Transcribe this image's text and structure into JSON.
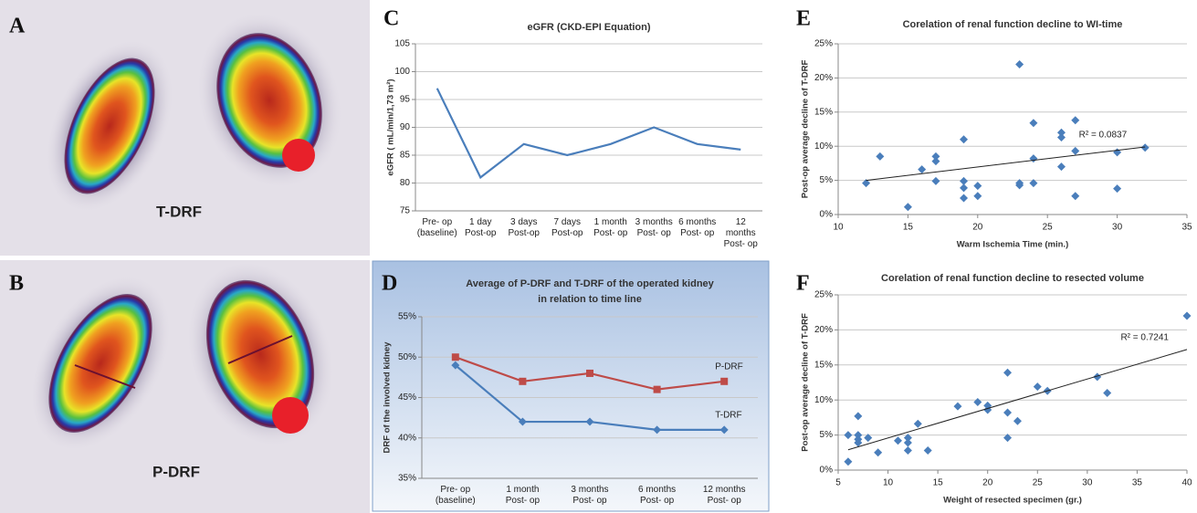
{
  "images": [
    {
      "letter": "A",
      "label": "T-DRF"
    },
    {
      "letter": "B",
      "label": "P-DRF"
    }
  ],
  "chart_data": [
    {
      "type": "line",
      "panel": "C",
      "title": [
        "eGFR (CKD-EPI Equation)"
      ],
      "ylabel": "eGFR ( mL/min/1,73 m²)",
      "categories": [
        [
          "Pre- op",
          "(baseline)"
        ],
        [
          "1 day",
          "Post-op"
        ],
        [
          "3 days",
          "Post-op"
        ],
        [
          "7 days",
          "Post-op"
        ],
        [
          "1 month",
          "Post- op"
        ],
        [
          "3 months",
          "Post- op"
        ],
        [
          "6 months",
          "Post- op"
        ],
        [
          "12",
          "months",
          "Post- op"
        ]
      ],
      "series": [
        {
          "color": "#4a7ebb",
          "values": [
            97,
            81,
            87,
            85,
            87,
            90,
            87,
            86
          ]
        }
      ],
      "ylim": [
        75,
        105
      ],
      "yticks": [
        75,
        80,
        85,
        90,
        95,
        100,
        105
      ],
      "grid": true
    },
    {
      "type": "line",
      "panel": "D",
      "title": [
        "Average of P-DRF and T-DRF of the operated kidney",
        "in relation to time line"
      ],
      "ylabel": "DRF of the involved kidney",
      "categories": [
        [
          "Pre- op",
          "(baseline)"
        ],
        [
          "1 month",
          "Post- op"
        ],
        [
          "3 months",
          "Post- op"
        ],
        [
          "6 months",
          "Post- op"
        ],
        [
          "12 months",
          "Post- op"
        ]
      ],
      "series": [
        {
          "name": "P-DRF",
          "color": "#be4b48",
          "marker": "square",
          "values": [
            50,
            47,
            48,
            46,
            47
          ]
        },
        {
          "name": "T-DRF",
          "color": "#4a7ebb",
          "marker": "diamond",
          "values": [
            49,
            42,
            42,
            41,
            41
          ]
        }
      ],
      "ylim": [
        35,
        55
      ],
      "yticks": [
        {
          "value": 35,
          "label": "35%"
        },
        {
          "value": 40,
          "label": "40%"
        },
        {
          "value": 45,
          "label": "45%"
        },
        {
          "value": 50,
          "label": "50%"
        },
        {
          "value": 55,
          "label": "55%"
        }
      ],
      "grid": true
    },
    {
      "type": "scatter",
      "panel": "E",
      "title": [
        "Corelation of renal function decline to WI-time"
      ],
      "xlabel": "Warm Ischemia Time (min.)",
      "ylabel": "Post-op average decline of T-DRF",
      "color": "#4a7ebb",
      "x": [
        12,
        13,
        15,
        16,
        17,
        17,
        17,
        19,
        19,
        19,
        19,
        20,
        20,
        23,
        23,
        23,
        24,
        24,
        24,
        26,
        26,
        26,
        27,
        27,
        27,
        30,
        30,
        32
      ],
      "values": [
        4.6,
        8.5,
        1.1,
        6.6,
        7.8,
        8.5,
        4.9,
        11,
        4.9,
        3.9,
        2.4,
        4.2,
        2.7,
        22,
        4.6,
        4.3,
        13.4,
        8.2,
        4.6,
        12,
        11.3,
        7,
        13.8,
        9.3,
        2.7,
        9.1,
        3.8,
        9.8
      ],
      "trendline": {
        "x": [
          12,
          32
        ],
        "y": [
          5.0,
          9.9
        ]
      },
      "annotation": "R² = 0.0837",
      "xlim": [
        10,
        35
      ],
      "xticks": [
        10,
        15,
        20,
        25,
        30,
        35
      ],
      "ylim": [
        0,
        25
      ],
      "yticks": [
        {
          "value": 0,
          "label": "0%"
        },
        {
          "value": 5,
          "label": "5%"
        },
        {
          "value": 10,
          "label": "10%"
        },
        {
          "value": 15,
          "label": "15%"
        },
        {
          "value": 20,
          "label": "20%"
        },
        {
          "value": 25,
          "label": "25%"
        }
      ],
      "grid": true
    },
    {
      "type": "scatter",
      "panel": "F",
      "title": [
        "Corelation of renal function decline to resected volume"
      ],
      "xlabel": "Weight of resected specimen (gr.)",
      "ylabel": "Post-op average decline of T-DRF",
      "color": "#4a7ebb",
      "x": [
        6,
        6,
        7,
        7,
        7,
        7,
        8,
        9,
        11,
        12,
        12,
        12,
        13,
        14,
        17,
        19,
        20,
        20,
        22,
        22,
        22,
        23,
        25,
        26,
        31,
        32,
        40
      ],
      "values": [
        1.2,
        5,
        7.7,
        5,
        4.4,
        3.9,
        4.6,
        2.5,
        4.2,
        4.6,
        3.9,
        2.8,
        6.6,
        2.8,
        9.1,
        9.7,
        9.2,
        8.6,
        13.9,
        8.2,
        4.6,
        7,
        11.9,
        11.3,
        13.3,
        11,
        22
      ],
      "trendline": {
        "x": [
          6,
          40
        ],
        "y": [
          2.9,
          17.2
        ]
      },
      "annotation": "R² = 0.7241",
      "xlim": [
        5,
        40
      ],
      "xticks": [
        5,
        10,
        15,
        20,
        25,
        30,
        35,
        40
      ],
      "ylim": [
        0,
        25
      ],
      "yticks": [
        {
          "value": 0,
          "label": "0%"
        },
        {
          "value": 5,
          "label": "5%"
        },
        {
          "value": 10,
          "label": "10%"
        },
        {
          "value": 15,
          "label": "15%"
        },
        {
          "value": 20,
          "label": "20%"
        },
        {
          "value": 25,
          "label": "25%"
        }
      ],
      "grid": true
    }
  ]
}
